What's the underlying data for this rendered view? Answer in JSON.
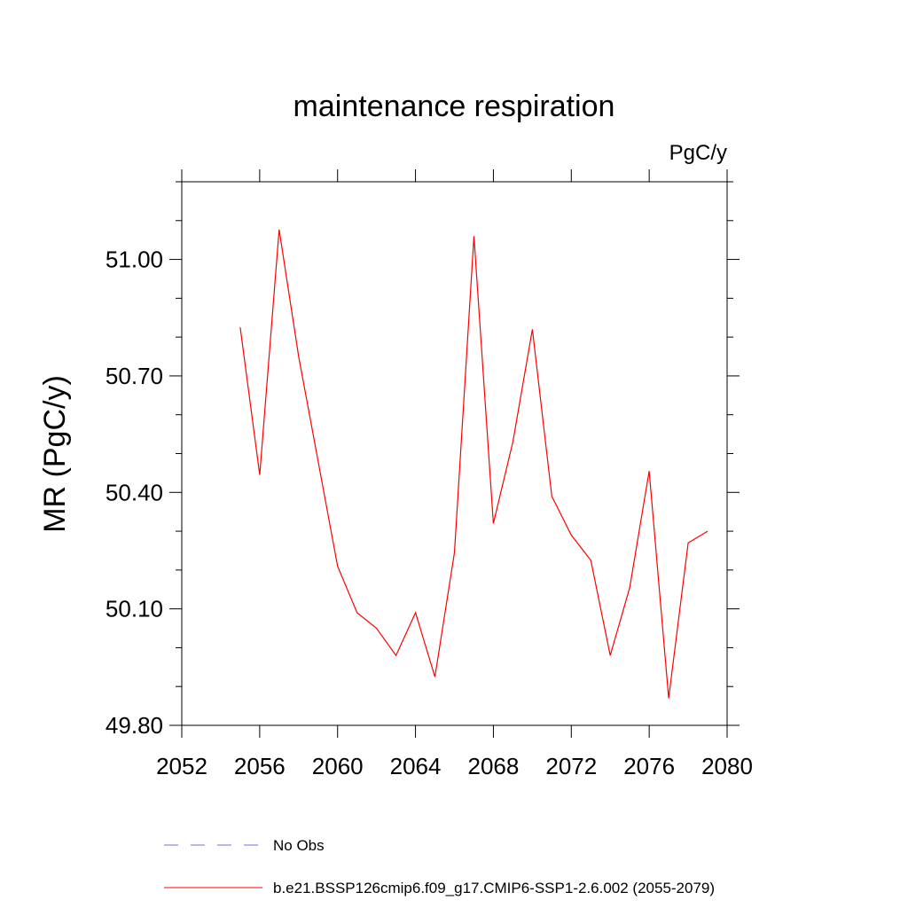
{
  "chart_data": {
    "type": "line",
    "title": "maintenance respiration",
    "units_label": "PgC/y",
    "xlabel": "",
    "ylabel": "MR  (PgC/y)",
    "xlim": [
      2052,
      2080
    ],
    "ylim": [
      49.8,
      51.2
    ],
    "x_ticks": [
      2052,
      2056,
      2060,
      2064,
      2068,
      2072,
      2076,
      2080
    ],
    "x_tick_labels": [
      "2052",
      "2056",
      "2060",
      "2064",
      "2068",
      "2072",
      "2076",
      "2080"
    ],
    "y_ticks": [
      49.8,
      50.1,
      50.4,
      50.7,
      51.0
    ],
    "y_tick_labels": [
      "49.80",
      "50.10",
      "50.40",
      "50.70",
      "51.00"
    ],
    "grid": false,
    "series": [
      {
        "name": "b.e21.BSSP126cmip6.f09_g17.CMIP6-SSP1-2.6.002 (2055-2079)",
        "color": "#ff0000",
        "style": "solid",
        "x": [
          2055,
          2056,
          2057,
          2058,
          2059,
          2060,
          2061,
          2062,
          2063,
          2064,
          2065,
          2066,
          2067,
          2068,
          2069,
          2070,
          2071,
          2072,
          2073,
          2074,
          2075,
          2076,
          2077,
          2078,
          2079
        ],
        "y": [
          50.825,
          50.445,
          51.077,
          50.75,
          50.48,
          50.21,
          50.09,
          50.05,
          49.98,
          50.09,
          49.925,
          50.245,
          51.06,
          50.32,
          50.53,
          50.82,
          50.39,
          50.29,
          50.225,
          49.98,
          50.155,
          50.455,
          49.87,
          50.27,
          50.3
        ]
      }
    ],
    "legend": [
      {
        "label": "No Obs",
        "color": "#7b68ee",
        "style": "dashed"
      },
      {
        "label": "b.e21.BSSP126cmip6.f09_g17.CMIP6-SSP1-2.6.002 (2055-2079)",
        "color": "#ff0000",
        "style": "solid"
      }
    ],
    "legend_position": "bottom"
  }
}
